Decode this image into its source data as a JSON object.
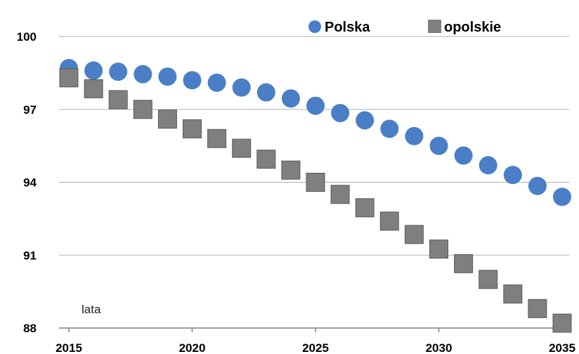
{
  "chart_data": {
    "type": "scatter",
    "title": "",
    "xlabel": "lata",
    "ylabel": "",
    "x": [
      2015,
      2016,
      2017,
      2018,
      2019,
      2020,
      2021,
      2022,
      2023,
      2024,
      2025,
      2026,
      2027,
      2028,
      2029,
      2030,
      2031,
      2032,
      2033,
      2034,
      2035
    ],
    "series": [
      {
        "name": "Polska",
        "marker": "circle",
        "color": "#4a7fc7",
        "values": [
          98.7,
          98.6,
          98.55,
          98.45,
          98.35,
          98.2,
          98.1,
          97.9,
          97.7,
          97.45,
          97.15,
          96.85,
          96.55,
          96.2,
          95.9,
          95.5,
          95.1,
          94.7,
          94.3,
          93.85,
          93.4
        ]
      },
      {
        "name": "opolskie",
        "marker": "square",
        "color": "#7f7f7f",
        "values": [
          98.3,
          97.85,
          97.4,
          97.0,
          96.6,
          96.2,
          95.8,
          95.4,
          94.95,
          94.5,
          94.0,
          93.5,
          92.95,
          92.4,
          91.85,
          91.25,
          90.65,
          90.0,
          89.4,
          88.8,
          88.2
        ]
      }
    ],
    "ylim": [
      88,
      100
    ],
    "yticks": [
      88,
      91,
      94,
      97,
      100
    ],
    "xticks": [
      2015,
      2020,
      2025,
      2030,
      2035
    ],
    "xlim": [
      2015,
      2035
    ],
    "grid": "horizontal",
    "legend_position": "top-right"
  }
}
